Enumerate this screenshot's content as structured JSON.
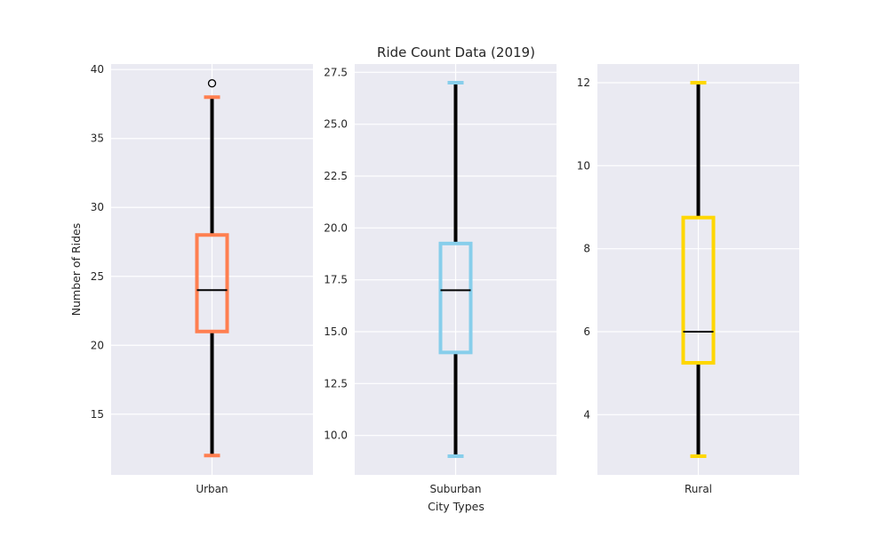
{
  "chart_data": {
    "type": "boxplot",
    "title": "Ride Count Data (2019)",
    "xlabel": "City Types",
    "ylabel": "Number of Rides",
    "grid": true,
    "panels": [
      {
        "category": "Urban",
        "color": "#FF7F50",
        "ylim": [
          10.6,
          40.4
        ],
        "yticks": [
          15,
          20,
          25,
          30,
          35,
          40
        ],
        "ytick_labels": [
          "15",
          "20",
          "25",
          "30",
          "35",
          "40"
        ],
        "whisker_low": 12,
        "q1": 21,
        "median": 24,
        "q3": 28,
        "whisker_high": 38,
        "outliers": [
          39
        ]
      },
      {
        "category": "Suburban",
        "color": "#87CEEB",
        "ylim": [
          8.1,
          27.9
        ],
        "yticks": [
          10.0,
          12.5,
          15.0,
          17.5,
          20.0,
          22.5,
          25.0,
          27.5
        ],
        "ytick_labels": [
          "10.0",
          "12.5",
          "15.0",
          "17.5",
          "20.0",
          "22.5",
          "25.0",
          "27.5"
        ],
        "whisker_low": 9,
        "q1": 14,
        "median": 17,
        "q3": 19.25,
        "whisker_high": 27,
        "outliers": []
      },
      {
        "category": "Rural",
        "color": "#FFD700",
        "ylim": [
          2.55,
          12.45
        ],
        "yticks": [
          4,
          6,
          8,
          10,
          12
        ],
        "ytick_labels": [
          "4",
          "6",
          "8",
          "10",
          "12"
        ],
        "whisker_low": 3,
        "q1": 5.25,
        "median": 6,
        "q3": 8.75,
        "whisker_high": 12,
        "outliers": []
      }
    ]
  }
}
